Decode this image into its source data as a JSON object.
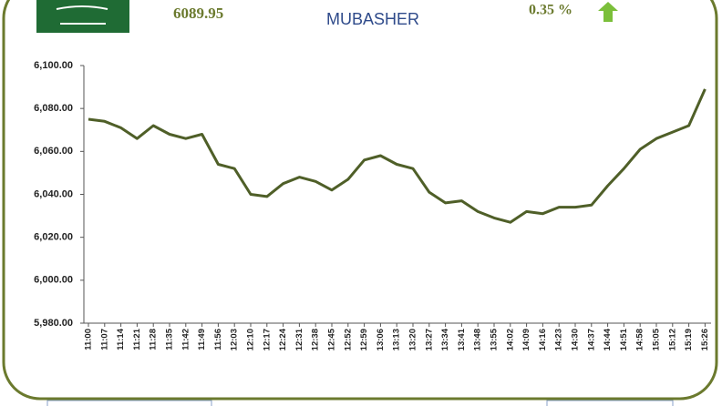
{
  "header": {
    "index_value": "6089.95",
    "logo": "MUBASHER",
    "change": "0.35 %"
  },
  "chart_data": {
    "type": "line",
    "categories": [
      "11:00",
      "11:07",
      "11:14",
      "11:21",
      "11:28",
      "11:35",
      "11:42",
      "11:49",
      "11:56",
      "12:03",
      "12:10",
      "12:17",
      "12:24",
      "12:31",
      "12:38",
      "12:45",
      "12:52",
      "12:59",
      "13:06",
      "13:13",
      "13:20",
      "13:27",
      "13:34",
      "13:41",
      "13:48",
      "13:55",
      "14:02",
      "14:09",
      "14:16",
      "14:23",
      "14:30",
      "14:37",
      "14:44",
      "14:51",
      "14:58",
      "15:05",
      "15:12",
      "15:19",
      "15:26"
    ],
    "values": [
      6075,
      6074,
      6071,
      6066,
      6072,
      6068,
      6066,
      6068,
      6054,
      6052,
      6040,
      6039,
      6045,
      6048,
      6046,
      6042,
      6047,
      6056,
      6058,
      6054,
      6052,
      6041,
      6036,
      6037,
      6032,
      6029,
      6027,
      6032,
      6031,
      6034,
      6034,
      6035,
      6044,
      6052,
      6061,
      6066,
      6069,
      6072,
      6089
    ],
    "color": "#4f5f28",
    "ylim": [
      5980,
      6100
    ],
    "yticks": [
      {
        "value": 5980,
        "label": "5,980.00"
      },
      {
        "value": 6000,
        "label": "6,000.00"
      },
      {
        "value": 6020,
        "label": "6,020.00"
      },
      {
        "value": 6040,
        "label": "6,040.00"
      },
      {
        "value": 6060,
        "label": "6,060.00"
      },
      {
        "value": 6080,
        "label": "6,080.00"
      },
      {
        "value": 6100,
        "label": "6,100.00"
      }
    ]
  }
}
